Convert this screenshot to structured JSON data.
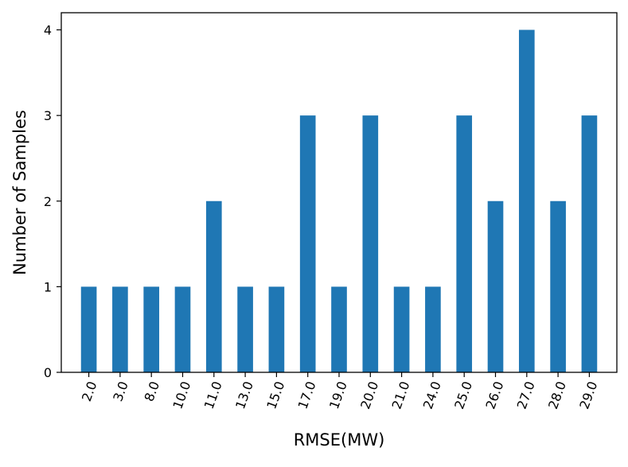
{
  "chart_data": {
    "type": "bar",
    "xlabel": "RMSE(MW)",
    "ylabel": "Number of Samples",
    "categories": [
      "2.0",
      "3.0",
      "8.0",
      "10.0",
      "11.0",
      "13.0",
      "15.0",
      "17.0",
      "19.0",
      "20.0",
      "21.0",
      "24.0",
      "25.0",
      "26.0",
      "27.0",
      "28.0",
      "29.0"
    ],
    "values": [
      1,
      1,
      1,
      1,
      2,
      1,
      1,
      3,
      1,
      3,
      1,
      1,
      3,
      2,
      4,
      2,
      3
    ],
    "ylim": [
      0,
      4.2
    ],
    "yticks": [
      "0",
      "1",
      "2",
      "3",
      "4"
    ],
    "bar_color": "#1f77b4",
    "grid": false,
    "xtick_rotation_deg": 70
  }
}
